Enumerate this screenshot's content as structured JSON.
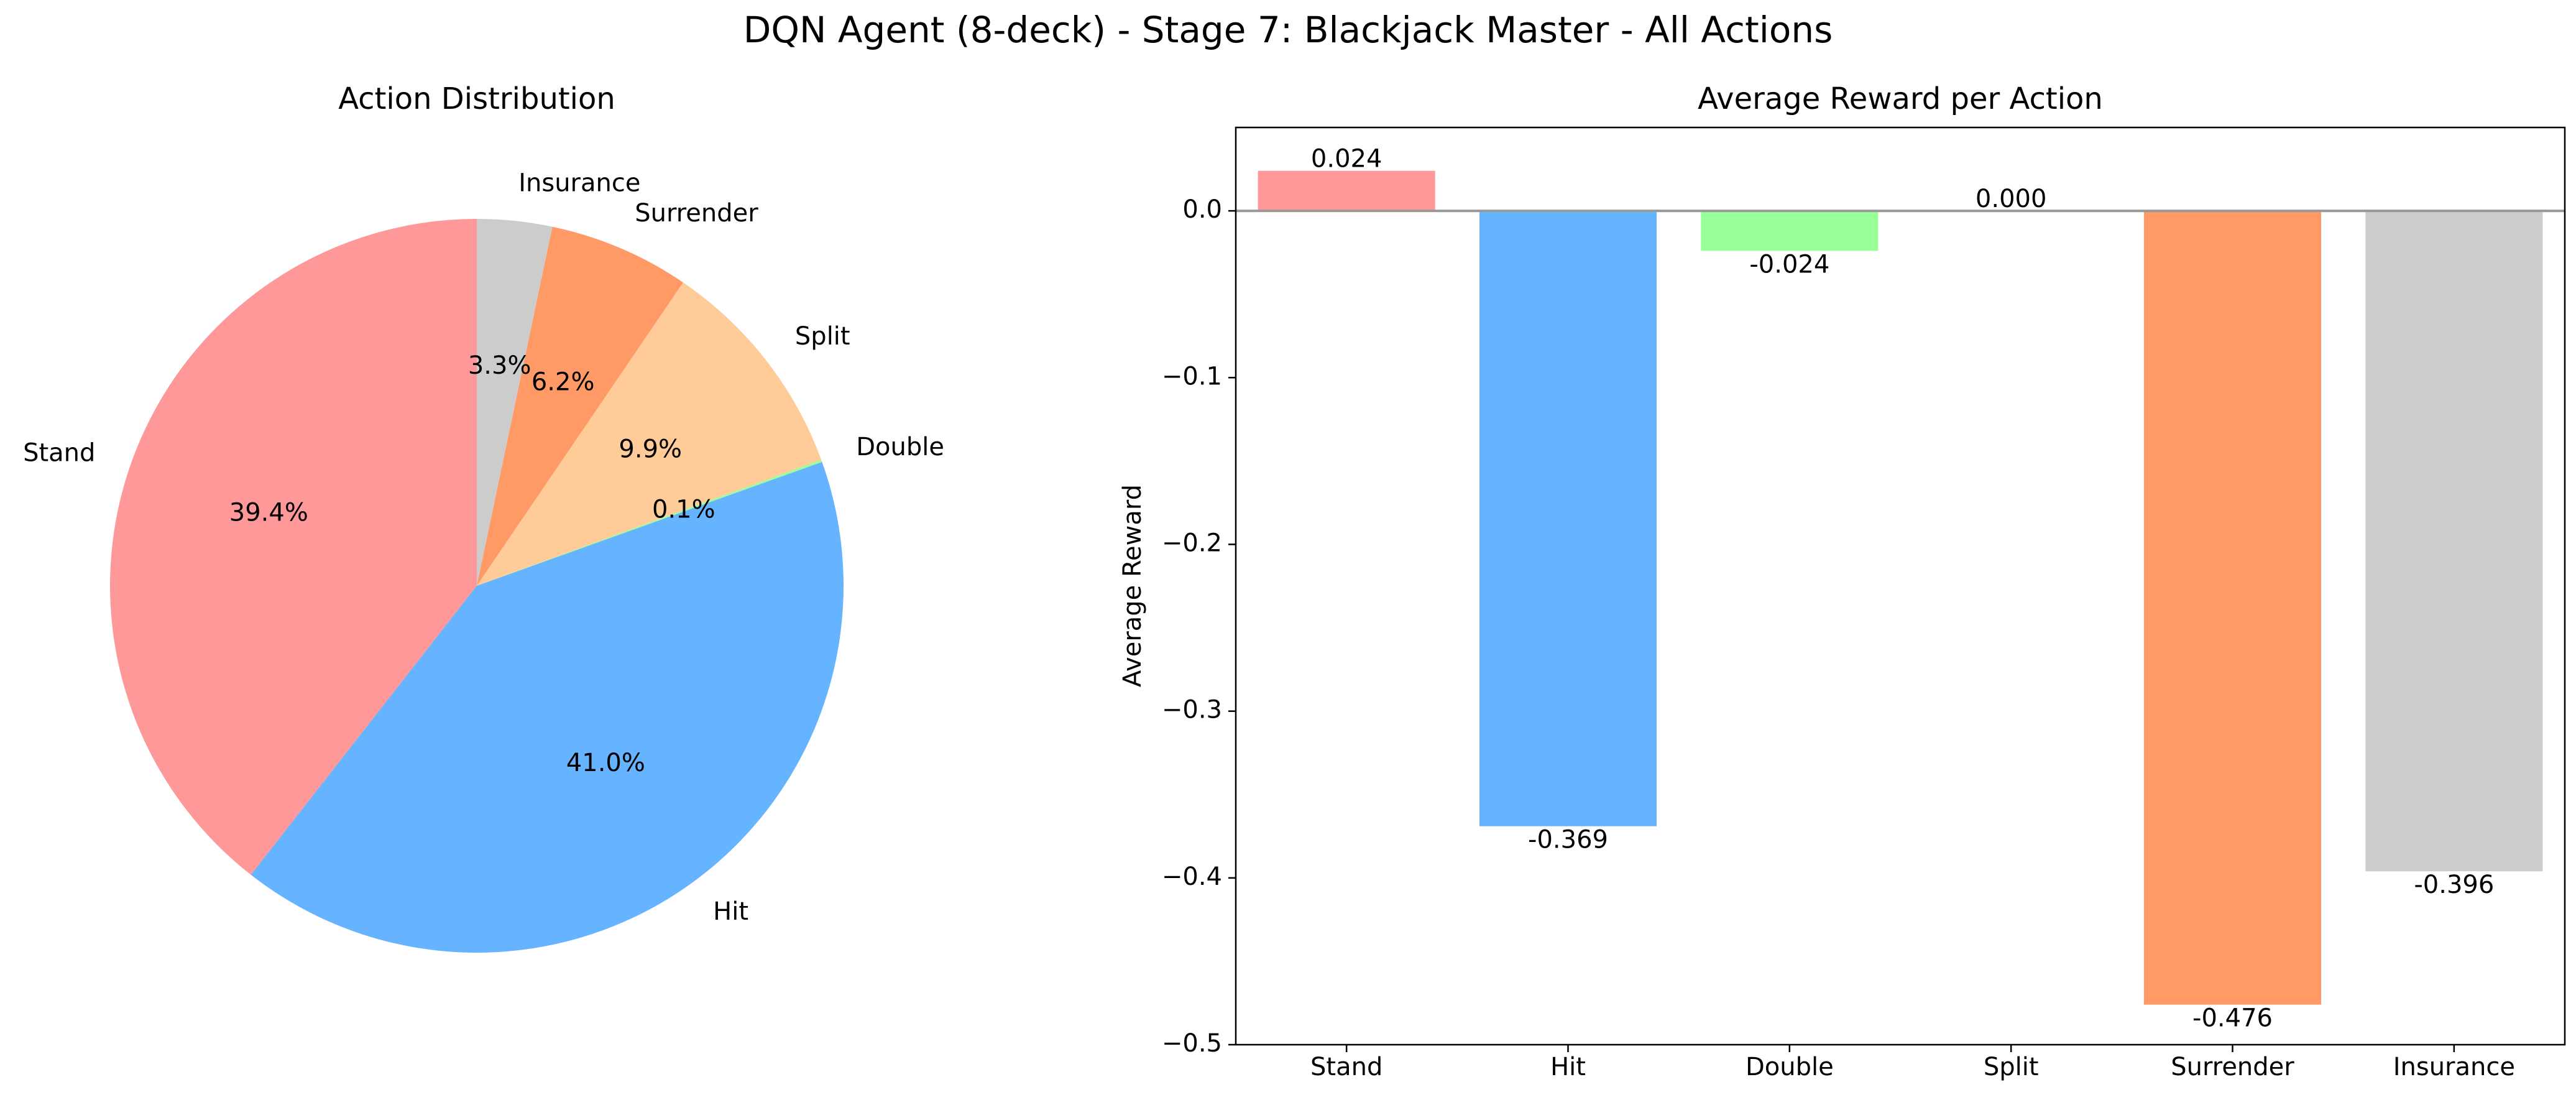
{
  "figure": {
    "title": "DQN Agent (8-deck) - Stage 7: Blackjack Master - All Actions"
  },
  "chart_data": [
    {
      "type": "pie",
      "title": "Action Distribution",
      "start_angle_deg": 90,
      "direction": "counterclockwise",
      "slices": [
        {
          "label": "Stand",
          "value": 39.4,
          "pct_label": "39.4%",
          "color": "#ff9999"
        },
        {
          "label": "Hit",
          "value": 41.0,
          "pct_label": "41.0%",
          "color": "#66b3ff"
        },
        {
          "label": "Double",
          "value": 0.1,
          "pct_label": "0.1%",
          "color": "#99ff99"
        },
        {
          "label": "Split",
          "value": 9.9,
          "pct_label": "9.9%",
          "color": "#ffcc99"
        },
        {
          "label": "Surrender",
          "value": 6.2,
          "pct_label": "6.2%",
          "color": "#ff9966"
        },
        {
          "label": "Insurance",
          "value": 3.3,
          "pct_label": "3.3%",
          "color": "#cccccc"
        }
      ]
    },
    {
      "type": "bar",
      "title": "Average Reward per Action",
      "xlabel": "",
      "ylabel": "Average Reward",
      "ylim": [
        -0.5,
        0.05
      ],
      "yticks": [
        0.0,
        -0.1,
        -0.2,
        -0.3,
        -0.4,
        -0.5
      ],
      "ytick_labels": [
        "0.0",
        "−0.1",
        "−0.2",
        "−0.3",
        "−0.4",
        "−0.5"
      ],
      "categories": [
        "Stand",
        "Hit",
        "Double",
        "Split",
        "Surrender",
        "Insurance"
      ],
      "values": [
        0.024,
        -0.369,
        -0.024,
        0.0,
        -0.476,
        -0.396
      ],
      "value_labels": [
        "0.024",
        "-0.369",
        "-0.024",
        "0.000",
        "-0.476",
        "-0.396"
      ],
      "colors": [
        "#ff9999",
        "#66b3ff",
        "#99ff99",
        "#ffcc99",
        "#ff9966",
        "#cccccc"
      ],
      "reference_line_y": 0.0,
      "reference_line_color": "#999999",
      "grid": false
    }
  ]
}
